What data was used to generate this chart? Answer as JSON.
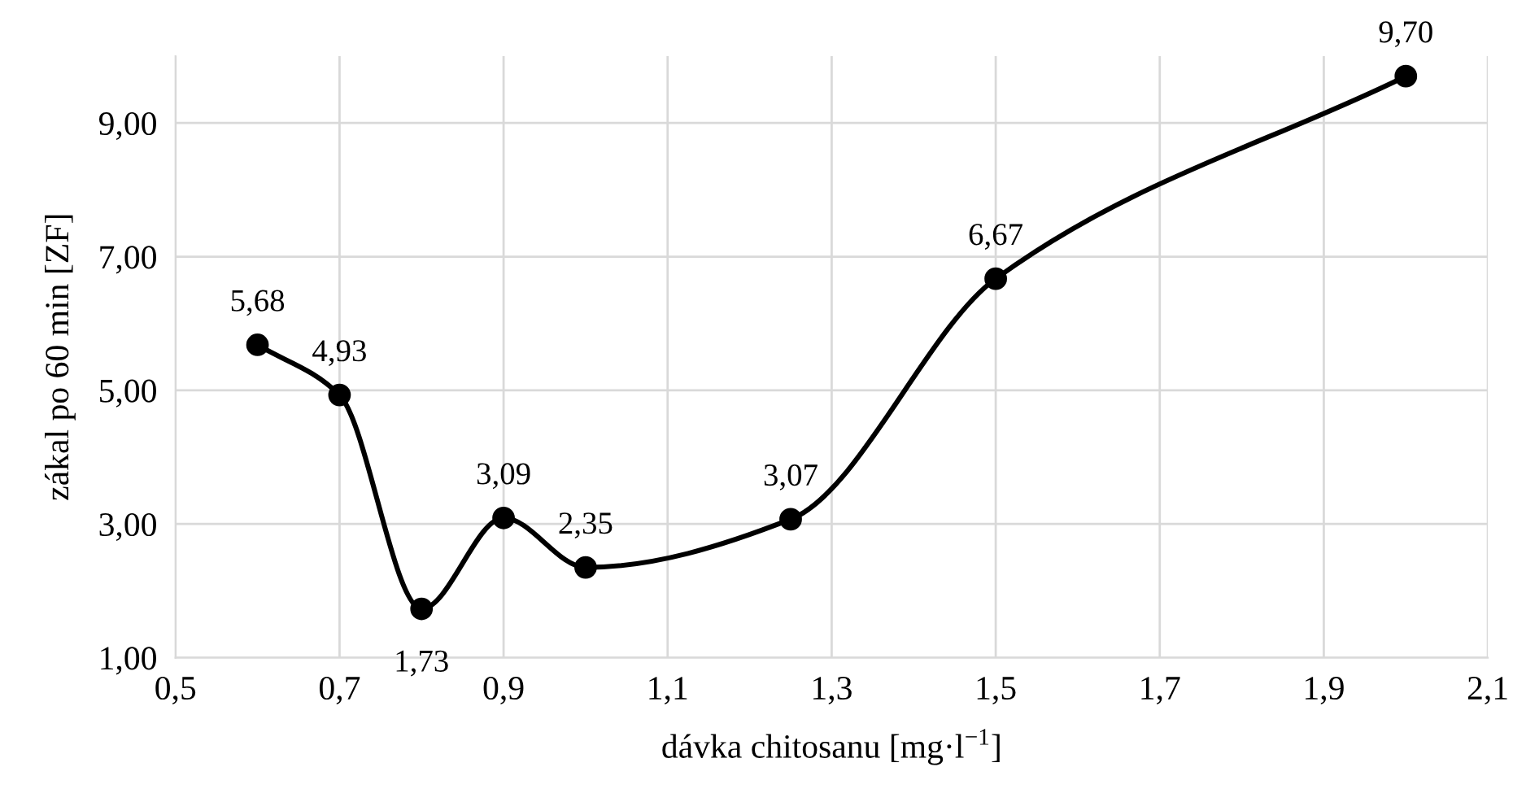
{
  "chart_data": {
    "type": "line",
    "xlabel": "dávka chitosanu [mg·l$^{−1}$]",
    "ylabel": "zákal po 60 min [ZF]",
    "x": [
      0.6,
      0.7,
      0.8,
      0.9,
      1.0,
      1.25,
      1.5,
      2.0
    ],
    "series": [
      {
        "color": "#000000",
        "values": [
          5.68,
          4.93,
          1.73,
          3.09,
          2.35,
          3.07,
          6.67,
          9.7
        ],
        "value_labels": [
          "5,68",
          "4,93",
          "1,73",
          "3,09",
          "2,35",
          "3,07",
          "6,67",
          "9,70"
        ]
      }
    ],
    "xlim": [
      0.5,
      2.1
    ],
    "xticks": [
      {
        "value": 0.5,
        "label": "0,5"
      },
      {
        "value": 0.7,
        "label": "0,7"
      },
      {
        "value": 0.9,
        "label": "0,9"
      },
      {
        "value": 1.1,
        "label": "1,1"
      },
      {
        "value": 1.3,
        "label": "1,3"
      },
      {
        "value": 1.5,
        "label": "1,5"
      },
      {
        "value": 1.7,
        "label": "1,7"
      },
      {
        "value": 1.9,
        "label": "1,9"
      },
      {
        "value": 2.1,
        "label": "2,1"
      }
    ],
    "ylim": [
      1,
      10
    ],
    "yticks": [
      {
        "value": 1,
        "label": "1,00"
      },
      {
        "value": 3,
        "label": "3,00"
      },
      {
        "value": 5,
        "label": "5,00"
      },
      {
        "value": 7,
        "label": "7,00"
      },
      {
        "value": 9,
        "label": "9,00"
      }
    ],
    "grid": true,
    "marker": "circle",
    "line_style": "solid"
  }
}
